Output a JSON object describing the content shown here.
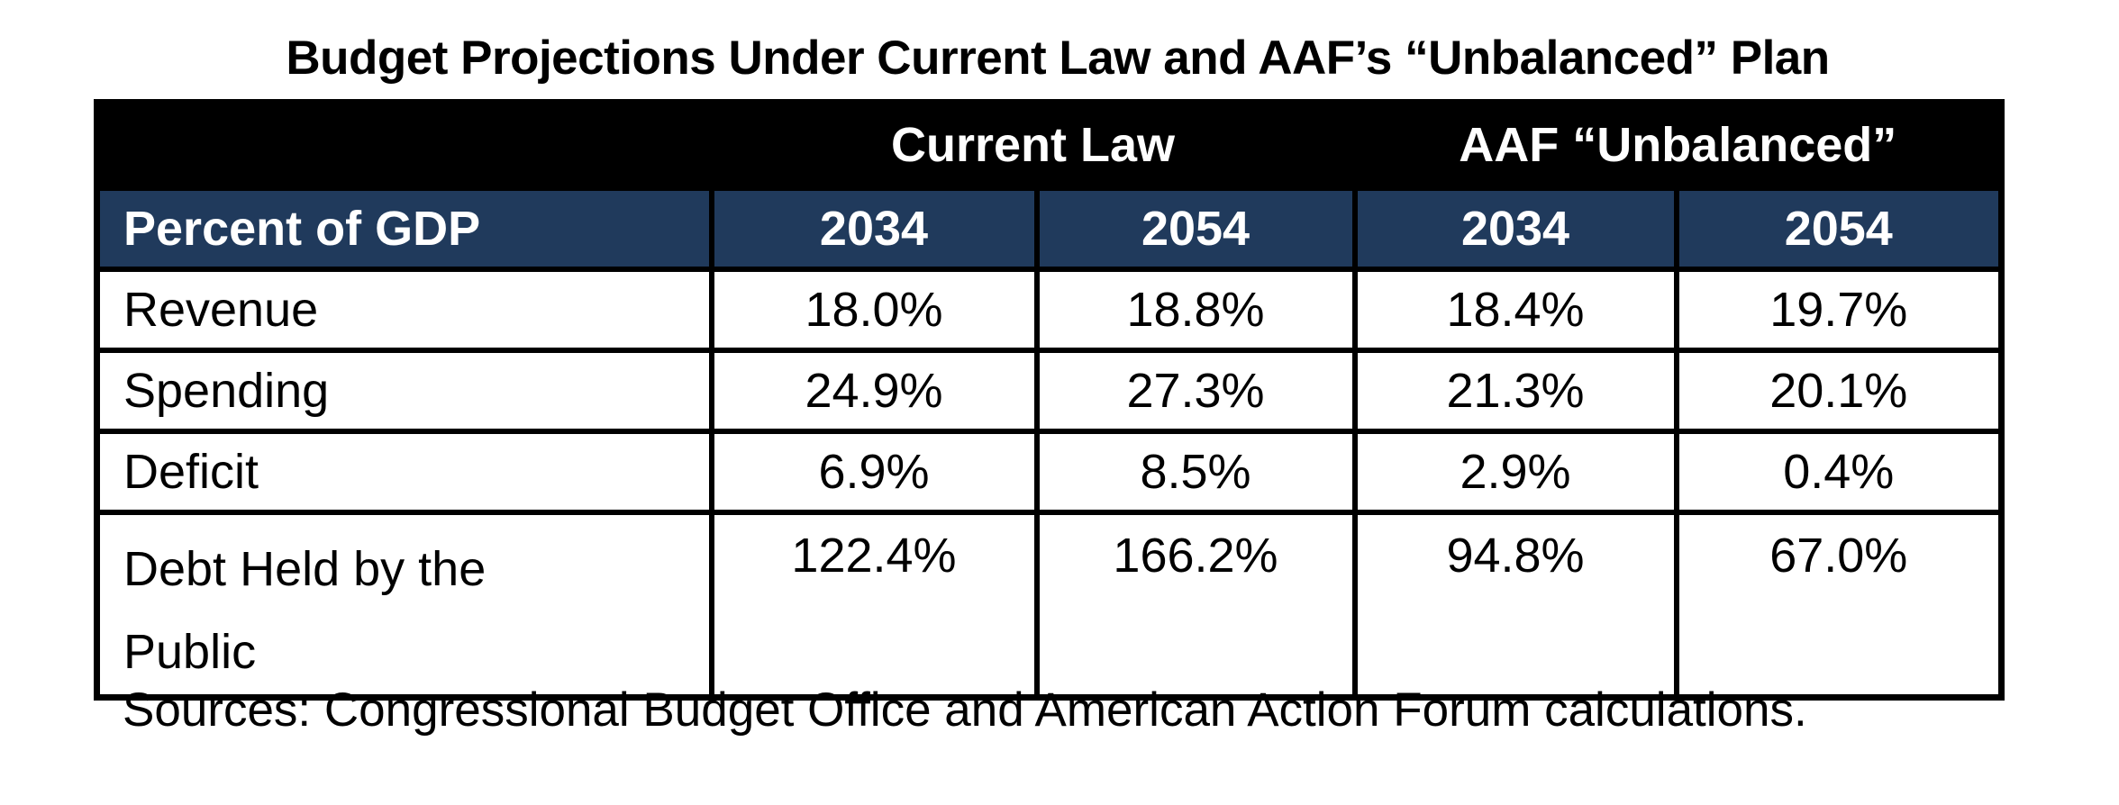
{
  "chart_data": {
    "type": "table",
    "title": "Budget Projections Under Current Law and AAF’s “Unbalanced” Plan",
    "group_headers": {
      "current_law": "Current Law",
      "aaf_unbalanced": "AAF “Unbalanced”"
    },
    "header": {
      "label": "Percent of GDP",
      "years": [
        "2034",
        "2054",
        "2034",
        "2054"
      ]
    },
    "rows": [
      {
        "label": "Revenue",
        "values": [
          "18.0%",
          "18.8%",
          "18.4%",
          "19.7%"
        ]
      },
      {
        "label": "Spending",
        "values": [
          "24.9%",
          "27.3%",
          "21.3%",
          "20.1%"
        ]
      },
      {
        "label": "Deficit",
        "values": [
          "6.9%",
          "8.5%",
          "2.9%",
          "0.4%"
        ]
      },
      {
        "label": "Debt Held by the Public",
        "values": [
          "122.4%",
          "166.2%",
          "94.8%",
          "67.0%"
        ]
      }
    ],
    "source_note": "Sources: Congressional Budget Office and American Action Forum calculations.",
    "layout": {
      "units": "percent of GDP",
      "column_group_spans": {
        "Current Law": [
          "2034",
          "2054"
        ],
        "AAF “Unbalanced”": [
          "2034",
          "2054"
        ]
      }
    }
  },
  "colors": {
    "group_header_bg": "#000000",
    "subheader_bg": "#203A5C",
    "border": "#000000",
    "header_text": "#FFFFFF",
    "body_text": "#000000",
    "page_bg": "#FFFFFF"
  }
}
